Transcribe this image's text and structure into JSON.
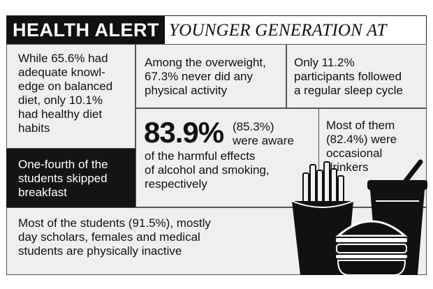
{
  "header": {
    "badge": "HEALTH ALERT",
    "subtitle": "YOUNGER GENERATION AT RISK"
  },
  "facts": {
    "diet": [
      "While 65.6% had",
      "adequate knowl-",
      "edge on balanced",
      "diet, only 10.1%",
      "had healthy diet",
      "habits"
    ],
    "activity": [
      "Among the overweight,",
      "67.3% never did any",
      "physical activity"
    ],
    "sleep": [
      "Only 11.2%",
      "participants followed",
      "a regular sleep cycle"
    ],
    "breakfast": [
      "One-fourth of the",
      "students skipped",
      "breakfast"
    ],
    "alcohol_big": "83.9%",
    "alcohol_line1": "(85.3%)",
    "alcohol_line2": "were aware",
    "alcohol_rest": [
      "of the harmful effects",
      "of alcohol and smoking,",
      "respectively"
    ],
    "drinkers": [
      "Most of them",
      "(82.4%) were",
      "occasional",
      "drinkers"
    ],
    "inactive": [
      "Most of the students (91.5%), mostly",
      "day scholars, females and medical",
      "students are physically inactive"
    ]
  },
  "icons": {
    "illustration": "fast-food-illustration",
    "fries": "fries-icon",
    "burger": "burger-icon",
    "drink": "soda-cup-icon"
  },
  "colors": {
    "ink": "#111111",
    "panel": "#efefef"
  }
}
